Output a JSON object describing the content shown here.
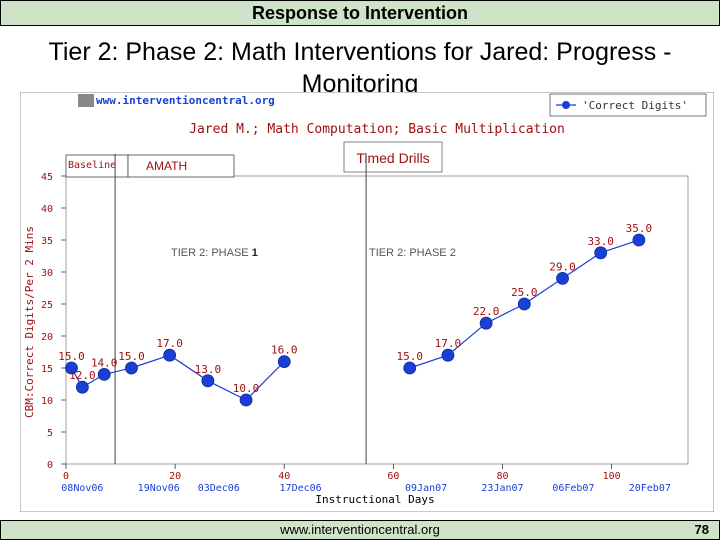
{
  "slide": {
    "header": "Response to Intervention",
    "title": "Tier 2: Phase 2: Math Interventions for Jared: Progress -Monitoring",
    "footer_url": "www.interventioncentral.org",
    "page_number": "78"
  },
  "chart_data": {
    "type": "line",
    "site_logo": "www.interventioncentral.org",
    "title": "Jared M.; Math Computation; Basic Multiplication",
    "xlabel": "Instructional Days",
    "ylabel": "CBM:Correct Digits/Per 2 Mins",
    "xlim": [
      0,
      114
    ],
    "ylim": [
      0,
      45
    ],
    "y_ticks": [
      0,
      5,
      10,
      15,
      20,
      25,
      30,
      35,
      40,
      45
    ],
    "x_ticks": [
      0,
      20,
      40,
      60,
      80,
      100
    ],
    "x_tick_labels": [
      "0",
      "20",
      "40",
      "60",
      "80",
      "100"
    ],
    "x_date_labels": [
      {
        "x": 3,
        "label": "08Nov06"
      },
      {
        "x": 17,
        "label": "19Nov06"
      },
      {
        "x": 28,
        "label": "03Dec06"
      },
      {
        "x": 43,
        "label": "17Dec06"
      },
      {
        "x": 66,
        "label": "09Jan07"
      },
      {
        "x": 80,
        "label": "23Jan07"
      },
      {
        "x": 93,
        "label": "06Feb07"
      },
      {
        "x": 107,
        "label": "20Feb07"
      }
    ],
    "legend": {
      "label": "'Correct Digits'",
      "position": "top-right"
    },
    "phase_lines": [
      9,
      55
    ],
    "phase_labels": [
      {
        "text": "Baseline",
        "position": "top-left"
      },
      {
        "text": "AMATH",
        "position": "top-left"
      },
      {
        "text": "Timed Drills",
        "position": "top"
      }
    ],
    "annotations": [
      {
        "text": "TIER 2: PHASE ",
        "bold": "1"
      },
      {
        "text": "TIER 2: PHASE 2",
        "bold": ""
      }
    ],
    "series": [
      {
        "name": "'Correct Digits'",
        "color": "#1a3fd6",
        "segments": [
          [
            {
              "x": 1,
              "y": 15.0,
              "label": "15.0"
            },
            {
              "x": 3,
              "y": 12.0,
              "label": "12.0"
            },
            {
              "x": 7,
              "y": 14.0,
              "label": "14.0"
            },
            {
              "x": 12,
              "y": 15.0,
              "label": "15.0"
            },
            {
              "x": 19,
              "y": 17.0,
              "label": "17.0"
            },
            {
              "x": 26,
              "y": 13.0,
              "label": "13.0"
            },
            {
              "x": 33,
              "y": 10.0,
              "label": "10.0"
            },
            {
              "x": 40,
              "y": 16.0,
              "label": "16.0"
            }
          ],
          [
            {
              "x": 63,
              "y": 15.0,
              "label": "15.0"
            },
            {
              "x": 70,
              "y": 17.0,
              "label": "17.0"
            },
            {
              "x": 77,
              "y": 22.0,
              "label": "22.0"
            },
            {
              "x": 84,
              "y": 25.0,
              "label": "25.0"
            },
            {
              "x": 91,
              "y": 29.0,
              "label": "29.0"
            },
            {
              "x": 98,
              "y": 33.0,
              "label": "33.0"
            },
            {
              "x": 105,
              "y": 35.0,
              "label": "35.0"
            }
          ]
        ]
      }
    ]
  }
}
